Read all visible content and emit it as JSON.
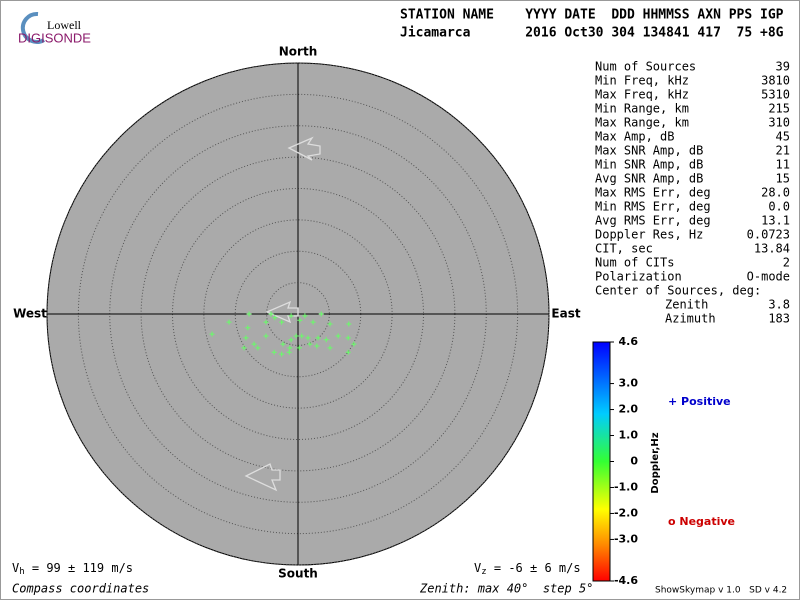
{
  "logo": {
    "line1": "Lowell",
    "line2": "DIGISONDE"
  },
  "header": {
    "labels": "STATION NAME    YYYY DATE  DDD HHMMSS AXN PPS IGP",
    "values": "Jicamarca       2016 Oct30 304 134841 417  75 +8G"
  },
  "chart_data": {
    "type": "skymap",
    "directions": {
      "north": "North",
      "south": "South",
      "east": "East",
      "west": "West"
    },
    "rlim": [
      0,
      40
    ],
    "rticks": [
      5,
      10,
      15,
      20,
      25,
      30,
      35,
      40
    ],
    "points": {
      "color": "#66ff66",
      "x": [
        -7.8,
        -4.3,
        -1.1,
        1.1,
        3.7,
        -13.7,
        -11.0,
        -8.0,
        -5.1,
        -3.7,
        -2.6,
        0.3,
        2.4,
        5.1,
        8.1,
        -8.3,
        -7.0,
        -5.1,
        -2.4,
        -1.1,
        -0.3,
        0.6,
        1.6,
        3.2,
        4.5,
        6.4,
        8.0,
        8.9,
        -8.6,
        -6.4,
        -3.8,
        -2.6,
        -1.3,
        0.2,
        1.9,
        3.0,
        5.1,
        8.0,
        -1.4
      ],
      "y": [
        0,
        0,
        -0.3,
        -0.3,
        0,
        -3.2,
        -1.3,
        -2.2,
        -1.3,
        -0.6,
        -1.3,
        -1.0,
        -1.3,
        -1.6,
        -1.6,
        -3.8,
        -4.8,
        -3.5,
        -4.8,
        -4.1,
        -3.5,
        -3.5,
        -3.8,
        -3.8,
        -4.1,
        -3.5,
        -3.8,
        -4.8,
        -5.4,
        -5.4,
        -6.1,
        -6.4,
        -5.4,
        -5.4,
        -4.8,
        -5.1,
        -5.4,
        -6.1,
        -6.1
      ]
    },
    "colorbar": {
      "label": "Doppler,Hz",
      "ylim": [
        -4.6,
        4.6
      ],
      "yticks": [
        4.6,
        {
          "value": 3,
          "label": "3.0"
        },
        {
          "value": 2,
          "label": "2.0"
        },
        {
          "value": 1,
          "label": "1.0"
        },
        0,
        {
          "value": -1,
          "label": "-1.0"
        },
        {
          "value": -2,
          "label": "-2.0"
        },
        {
          "value": -3,
          "label": "-3.0"
        },
        -4.6
      ]
    },
    "legend": {
      "positive": "+ Positive",
      "negative": "o Negative"
    },
    "zenith_note": "Zenith: max 40°  step 5°",
    "coords_note": "Compass coordinates",
    "vh": {
      "symbol": "V",
      "sub": "h",
      "text": " = 99 ± 119 m/s"
    },
    "vz": {
      "symbol": "V",
      "sub": "z",
      "text": " = -6 ± 6 m/s"
    }
  },
  "stats": {
    "rows": [
      [
        "Num of Sources",
        "39"
      ],
      [
        "Min Freq, kHz",
        "3810"
      ],
      [
        "Max Freq, kHz",
        "5310"
      ],
      [
        "Min Range, km",
        "215"
      ],
      [
        "Max Range, km",
        "310"
      ],
      [
        "Max Amp, dB",
        "45"
      ],
      [
        "Max SNR Amp, dB",
        "21"
      ],
      [
        "Min SNR Amp, dB",
        "11"
      ],
      [
        "Avg SNR Amp, dB",
        "15"
      ],
      [
        "Max RMS Err, deg",
        "28.0"
      ],
      [
        "Min RMS Err, deg",
        "0.0"
      ],
      [
        "Avg RMS Err, deg",
        "13.1"
      ],
      [
        "Doppler Res, Hz",
        "0.0723"
      ],
      [
        "CIT, sec",
        "13.84"
      ],
      [
        "Num of CITs",
        "2"
      ],
      [
        "Polarization",
        "O-mode"
      ]
    ],
    "center": {
      "title": "Center of Sources, deg:",
      "rows": [
        [
          "Zenith",
          "3.8"
        ],
        [
          "Azimuth",
          "183"
        ]
      ]
    }
  },
  "footer": "ShowSkymap v 1.0   SD v 4.2"
}
